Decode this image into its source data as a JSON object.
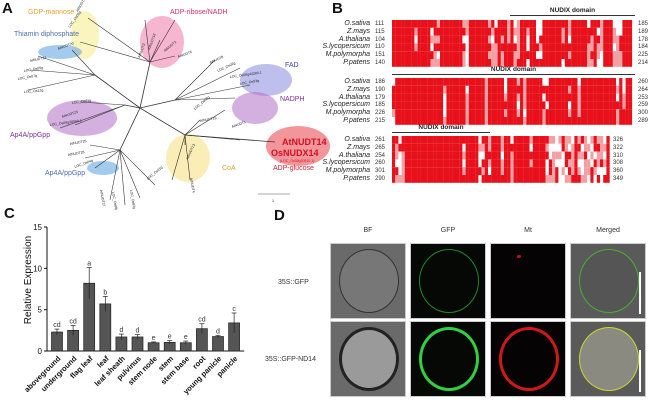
{
  "panels": {
    "a": "A",
    "b": "B",
    "c": "C",
    "d": "D"
  },
  "tree": {
    "groups": [
      {
        "label": "GDP-mannose",
        "color": "#e8a030",
        "halo": "#f6ec8a"
      },
      {
        "label": "Thiamin diphosphate",
        "color": "#4a6fb0",
        "halo": "#5aa0e0"
      },
      {
        "label": "ADP-ribose/NADH",
        "color": "#d0306a",
        "halo": "#f07aa8"
      },
      {
        "label": "FAD",
        "color": "#4040b0",
        "halo": "#8a8ae0"
      },
      {
        "label": "NADPH",
        "color": "#8030a0",
        "halo": "#b070c8"
      },
      {
        "label": "Ap4A/ppGpp",
        "color": "#8030a0",
        "halo": "#b070c8"
      },
      {
        "label": "Ap4A/ppGpp",
        "color": "#4a6fb0",
        "halo": "#5aa0e0"
      },
      {
        "label": "CoA",
        "color": "#e8a030",
        "halo": "#f6e07a"
      },
      {
        "label": "ADP-glucose",
        "color": "#d02030",
        "halo": "#e8404a"
      }
    ],
    "highlight": {
      "at": "AtNUDT14",
      "os": "OsNUDX14",
      "loc": "(LOC_Os08g30510.1)"
    },
    "leaves": [
      "AtNUDT9",
      "LOC_Os09g",
      "AtNUDT20",
      "AtNUDT24",
      "LOC_Os05g",
      "LOC_Os07g",
      "LOC_Os12g",
      "AtNUDT3",
      "AtNUDT18",
      "AtNUDT2",
      "AtNUDT6",
      "AtNUDT8",
      "LOC_Os02g",
      "LOC_Os08g44280.1",
      "LOC_Os03g",
      "LOC_Os01g",
      "AtNUDT23",
      "LOC_Os09g38040.1",
      "AtNUDT19",
      "LOC_Os08g",
      "AtNUDT1",
      "AtNUDT25",
      "AtNUDT26",
      "LOC_Os04g",
      "AtNUDT27",
      "LOC_Os08g32740.1",
      "LOC_Os02g",
      "LOC_Os11g",
      "AtNUDT13",
      "AtNUDT4",
      "AtNUDT21",
      "AtNUDT15",
      "AtNUDT22"
    ],
    "scale": "1"
  },
  "alignment": {
    "domain_label": "NUDIX domain",
    "species": [
      "O.sativa",
      "Z.mays",
      "A.thaliana",
      "S.lycopersicum",
      "M.polymorpha",
      "P.patens"
    ],
    "blocks": [
      {
        "start": [
          111,
          115,
          104,
          110,
          151,
          140
        ],
        "end": [
          185,
          189,
          178,
          184,
          225,
          214
        ]
      },
      {
        "start": [
          186,
          190,
          179,
          185,
          226,
          215
        ],
        "end": [
          260,
          264,
          253,
          259,
          300,
          289
        ]
      },
      {
        "start": [
          261,
          265,
          254,
          260,
          301,
          290
        ],
        "end": [
          326,
          322,
          310,
          308,
          360,
          349
        ]
      }
    ],
    "colors": {
      "identical": "#e8101a",
      "similar": "#f2a0a4"
    }
  },
  "chart_data": {
    "type": "bar",
    "title": "",
    "xlabel": "",
    "ylabel": "Relative Expression",
    "ylim": [
      0,
      15
    ],
    "yticks": [
      0,
      5,
      10,
      15
    ],
    "categories": [
      "aboveground",
      "underground",
      "flag leaf",
      "leaf",
      "leaf sheath",
      "pulvinus",
      "stem node",
      "stem",
      "stem base",
      "root",
      "young panicle",
      "panicle"
    ],
    "values": [
      2.3,
      2.5,
      8.2,
      5.7,
      1.7,
      1.7,
      1.0,
      1.05,
      1.0,
      2.7,
      1.75,
      3.4
    ],
    "errors": [
      0.35,
      0.6,
      1.9,
      0.9,
      0.35,
      0.3,
      0.1,
      0.2,
      0.2,
      0.6,
      0.15,
      1.2
    ],
    "letters": [
      "cd",
      "cd",
      "a",
      "b",
      "d",
      "d",
      "e",
      "e",
      "e",
      "cd",
      "d",
      "c"
    ],
    "bar_color": "#555555",
    "grid": false
  },
  "microscopy": {
    "columns": [
      "BF",
      "GFP",
      "Mt",
      "Merged"
    ],
    "rows": [
      "35S::GFP",
      "35S::GFP-ND14"
    ]
  }
}
